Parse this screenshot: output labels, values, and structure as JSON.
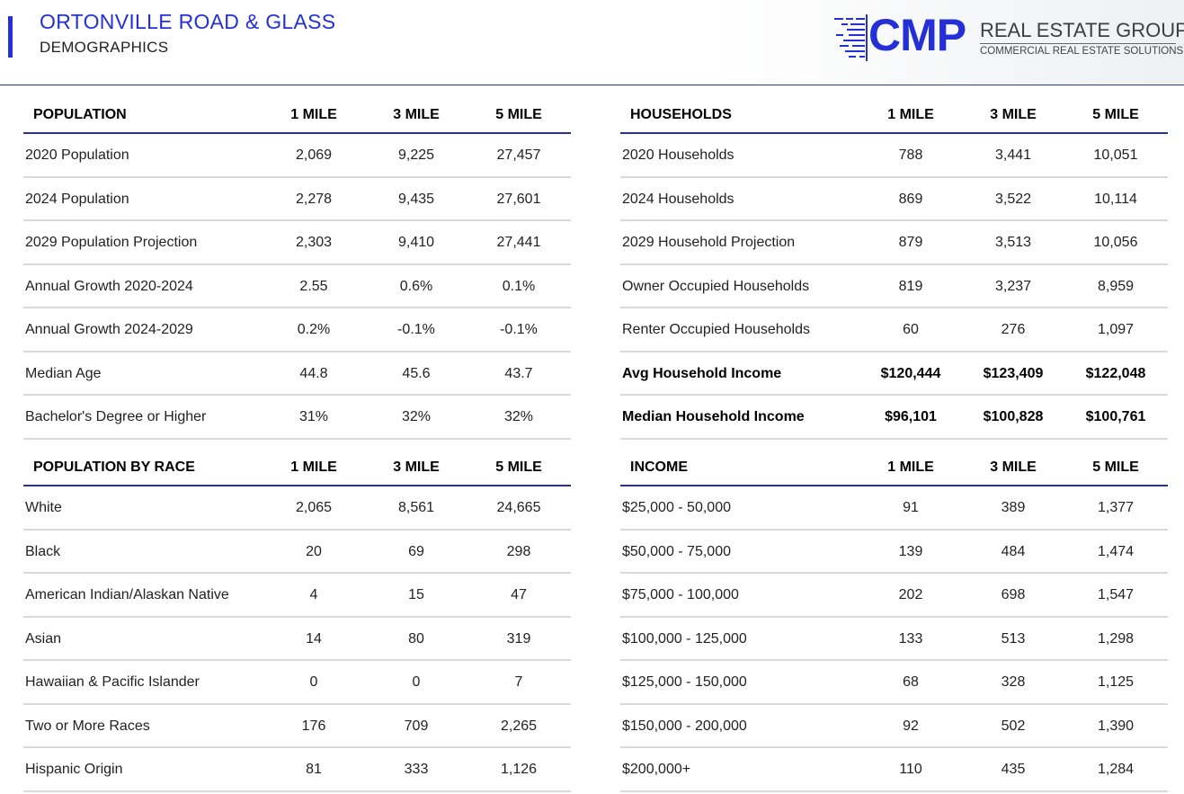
{
  "header": {
    "title": "ORTONVILLE ROAD & GLASS",
    "subtitle": "DEMOGRAPHICS"
  },
  "logo": {
    "brand": "CMP",
    "name": "REAL ESTATE GROUP",
    "tagline": "COMMERCIAL REAL ESTATE SOLUTIONS",
    "color": "#2430d6"
  },
  "tables": {
    "population": {
      "header": [
        "POPULATION",
        "1 MILE",
        "3 MILE",
        "5 MILE"
      ],
      "rows": [
        [
          "2020 Population",
          "2,069",
          "9,225",
          "27,457"
        ],
        [
          "2024 Population",
          "2,278",
          "9,435",
          "27,601"
        ],
        [
          "2029 Population Projection",
          "2,303",
          "9,410",
          "27,441"
        ],
        [
          "Annual Growth 2020-2024",
          "2.55",
          "0.6%",
          "0.1%"
        ],
        [
          "Annual Growth 2024-2029",
          "0.2%",
          "-0.1%",
          "-0.1%"
        ],
        [
          "Median Age",
          "44.8",
          "45.6",
          "43.7"
        ],
        [
          "Bachelor's Degree or Higher",
          "31%",
          "32%",
          "32%"
        ]
      ]
    },
    "households": {
      "header": [
        "HOUSEHOLDS",
        "1 MILE",
        "3 MILE",
        "5 MILE"
      ],
      "rows": [
        [
          "2020 Households",
          "788",
          "3,441",
          "10,051"
        ],
        [
          "2024 Households",
          "869",
          "3,522",
          "10,114"
        ],
        [
          "2029 Household Projection",
          "879",
          "3,513",
          "10,056"
        ],
        [
          "Owner Occupied Households",
          "819",
          "3,237",
          "8,959"
        ],
        [
          "Renter Occupied Households",
          "60",
          "276",
          "1,097"
        ],
        [
          "Avg Household Income",
          "$120,444",
          "$123,409",
          "$122,048"
        ],
        [
          "Median Household Income",
          "$96,101",
          "$100,828",
          "$100,761"
        ]
      ]
    },
    "race": {
      "header": [
        "POPULATION BY RACE",
        "1 MILE",
        "3 MILE",
        "5 MILE"
      ],
      "rows": [
        [
          "White",
          "2,065",
          "8,561",
          "24,665"
        ],
        [
          "Black",
          "20",
          "69",
          "298"
        ],
        [
          "American Indian/Alaskan Native",
          "4",
          "15",
          "47"
        ],
        [
          "Asian",
          "14",
          "80",
          "319"
        ],
        [
          "Hawaiian & Pacific Islander",
          "0",
          "0",
          "7"
        ],
        [
          "Two or More Races",
          "176",
          "709",
          "2,265"
        ],
        [
          "Hispanic Origin",
          "81",
          "333",
          "1,126"
        ]
      ]
    },
    "income": {
      "header": [
        "INCOME",
        "1 MILE",
        "3 MILE",
        "5 MILE"
      ],
      "rows": [
        [
          "$25,000 - 50,000",
          "91",
          "389",
          "1,377"
        ],
        [
          "$50,000 - 75,000",
          "139",
          "484",
          "1,474"
        ],
        [
          "$75,000 - 100,000",
          "202",
          "698",
          "1,547"
        ],
        [
          "$100,000 - 125,000",
          "133",
          "513",
          "1,298"
        ],
        [
          "$125,000 - 150,000",
          "68",
          "328",
          "1,125"
        ],
        [
          "$150,000 - 200,000",
          "92",
          "502",
          "1,390"
        ],
        [
          "$200,000+",
          "110",
          "435",
          "1,284"
        ]
      ]
    }
  }
}
